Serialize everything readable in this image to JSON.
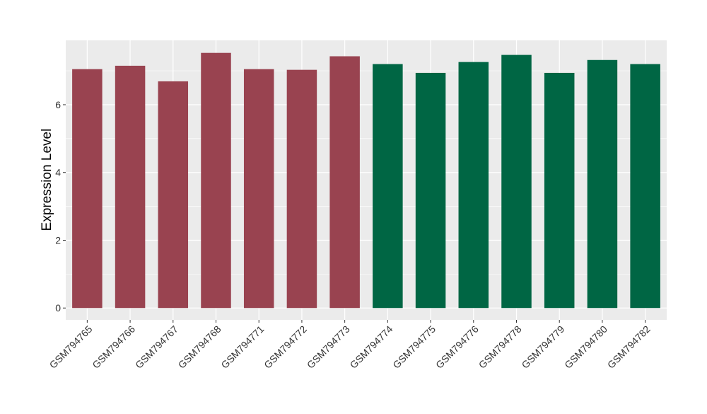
{
  "chart_data": {
    "type": "bar",
    "title": "",
    "xlabel": "",
    "ylabel": "Expression Level",
    "ylim": [
      -0.35,
      7.9
    ],
    "yticks": [
      0,
      2,
      4,
      6
    ],
    "grid": true,
    "categories": [
      "GSM794765",
      "GSM794766",
      "GSM794767",
      "GSM794768",
      "GSM794771",
      "GSM794772",
      "GSM794773",
      "GSM794774",
      "GSM794775",
      "GSM794776",
      "GSM794778",
      "GSM794779",
      "GSM794780",
      "GSM794782"
    ],
    "values": [
      7.05,
      7.15,
      6.69,
      7.53,
      7.05,
      7.03,
      7.43,
      7.2,
      6.94,
      7.26,
      7.47,
      6.94,
      7.32,
      7.2
    ],
    "groups": [
      "a",
      "a",
      "a",
      "a",
      "a",
      "a",
      "a",
      "b",
      "b",
      "b",
      "b",
      "b",
      "b",
      "b"
    ],
    "colors": {
      "a": "#994350",
      "b": "#006644"
    },
    "panel_background": "#EBEBEB",
    "legend": "none"
  }
}
